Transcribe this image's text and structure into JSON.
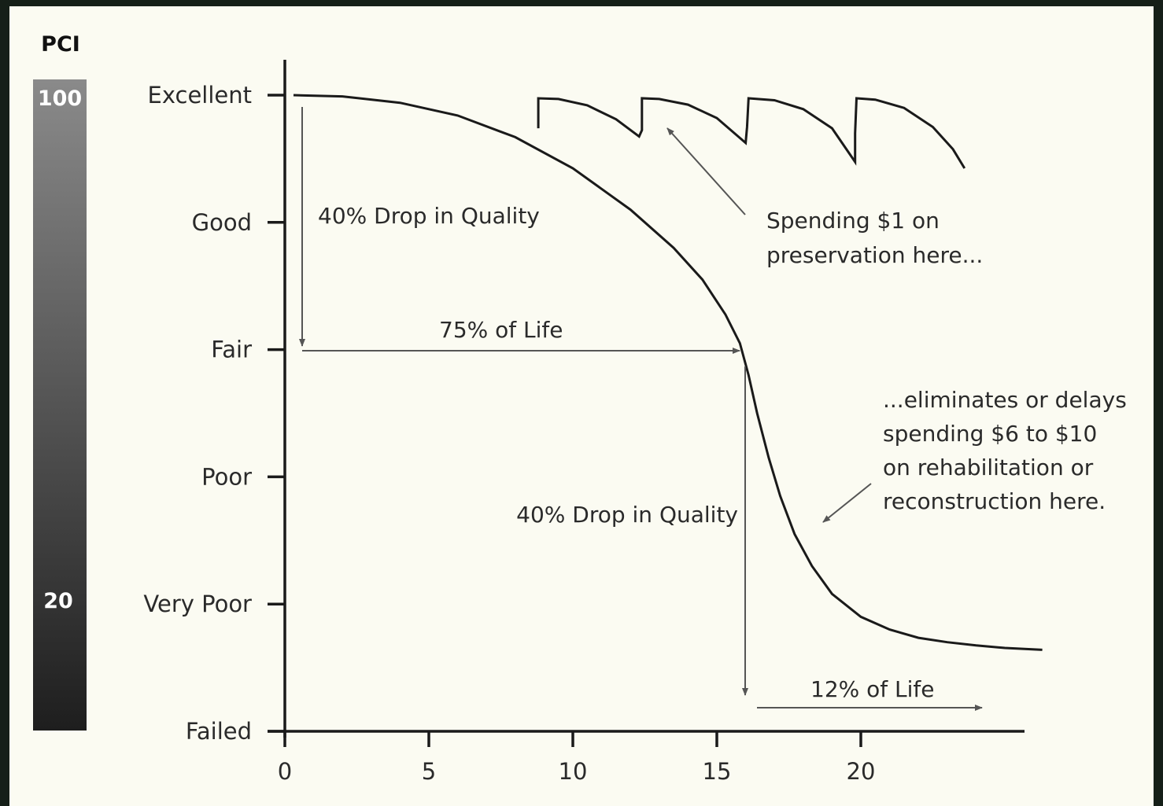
{
  "chart_data": {
    "type": "line",
    "title": "",
    "xlabel": "",
    "ylabel": "",
    "xlim": [
      0,
      26
    ],
    "ylim": [
      0,
      100
    ],
    "x_ticks": [
      0,
      5,
      10,
      15,
      20
    ],
    "y_ticks": [
      {
        "value": 100,
        "label": "Excellent"
      },
      {
        "value": 80,
        "label": "Good"
      },
      {
        "value": 60,
        "label": "Fair"
      },
      {
        "value": 40,
        "label": "Poor"
      },
      {
        "value": 20,
        "label": "Very Poor"
      },
      {
        "value": 0,
        "label": "Failed"
      }
    ],
    "pci_scale": {
      "title": "PCI",
      "top_label": "100",
      "bottom_label": "20"
    },
    "series": [
      {
        "values": [
          [
            0.3,
            100
          ],
          [
            2,
            99.8
          ],
          [
            4,
            98.8
          ],
          [
            6,
            96.8
          ],
          [
            8,
            93.4
          ],
          [
            10,
            88.5
          ],
          [
            12,
            82
          ],
          [
            13.5,
            76
          ],
          [
            14.5,
            71
          ],
          [
            15.3,
            65.5
          ],
          [
            15.8,
            61
          ],
          [
            16.1,
            56
          ],
          [
            16.4,
            50
          ],
          [
            16.8,
            43
          ],
          [
            17.2,
            37
          ],
          [
            17.7,
            31
          ],
          [
            18.3,
            26
          ],
          [
            19,
            21.6
          ],
          [
            20,
            18
          ],
          [
            21,
            16
          ],
          [
            22,
            14.7
          ],
          [
            23,
            14
          ],
          [
            24,
            13.5
          ],
          [
            25,
            13.1
          ],
          [
            26.3,
            12.8
          ]
        ]
      },
      {
        "values": [
          [
            8.8,
            94.8
          ],
          [
            8.8,
            99.5
          ],
          [
            9.5,
            99.4
          ],
          [
            10.5,
            98.4
          ],
          [
            11.5,
            96.2
          ],
          [
            12.3,
            93.5
          ],
          [
            12.4,
            94.5
          ],
          [
            12.4,
            99.5
          ],
          [
            13,
            99.4
          ],
          [
            14,
            98.5
          ],
          [
            15,
            96.4
          ],
          [
            16,
            92.5
          ],
          [
            16.05,
            95
          ],
          [
            16.1,
            99.5
          ],
          [
            17,
            99.2
          ],
          [
            18,
            97.8
          ],
          [
            19,
            94.8
          ],
          [
            19.8,
            89.5
          ],
          [
            19.8,
            94
          ],
          [
            19.85,
            99.5
          ],
          [
            20.5,
            99.3
          ],
          [
            21.5,
            98
          ],
          [
            22.5,
            95
          ],
          [
            23.2,
            91.5
          ],
          [
            23.6,
            88.5
          ]
        ]
      }
    ],
    "annotations": {
      "drop1": "40% Drop in Quality",
      "life1": "75% of Life",
      "drop2": "40% Drop in Quality",
      "life2": "12% of Life",
      "spending": [
        "Spending $1 on",
        "preservation here..."
      ],
      "eliminates": [
        "...eliminates or delays",
        "spending $6 to $10",
        "on rehabilitation or",
        "reconstruction here."
      ]
    }
  },
  "colors": {
    "background": "#fbfbf2",
    "frame": "#151f18",
    "line": "#1a1a1a",
    "arrow": "#555555",
    "pci_top": "#8a8a8a",
    "pci_bottom": "#1e1e1e"
  }
}
